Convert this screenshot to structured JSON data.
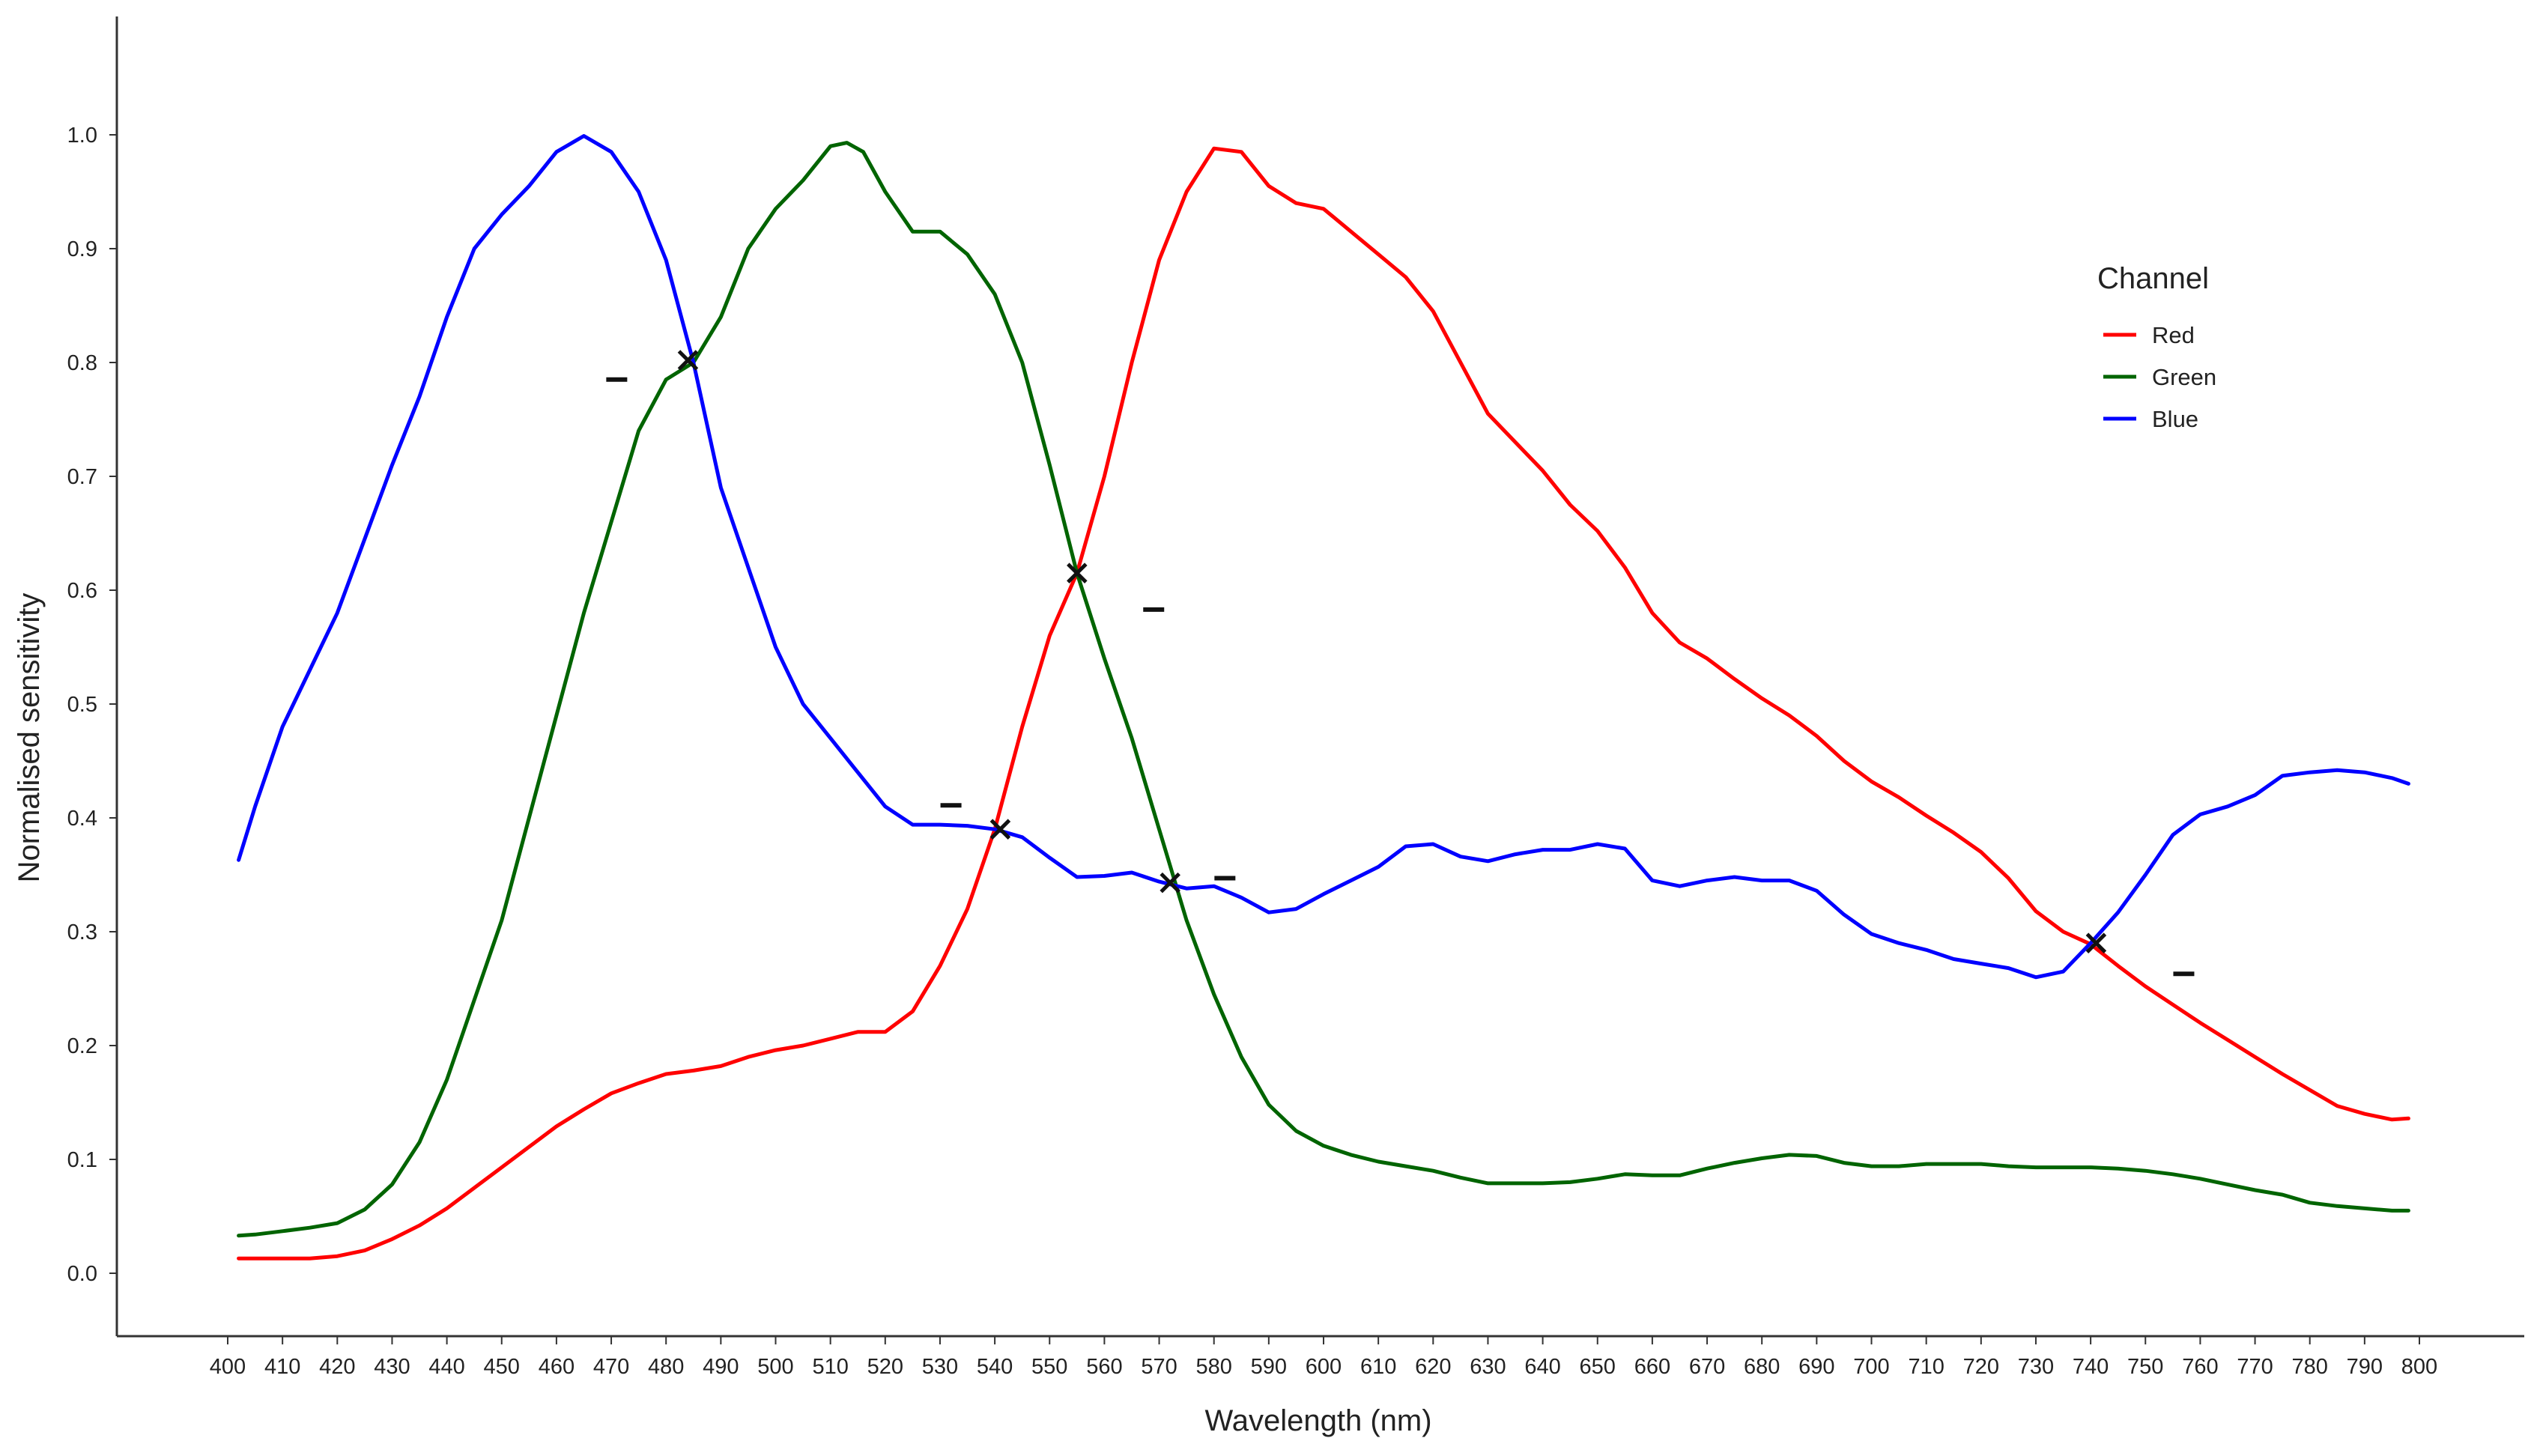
{
  "chart_data": {
    "type": "line",
    "title": "",
    "xlabel": "Wavelength (nm)",
    "ylabel": "Normalised sensitivity",
    "xlim": [
      400,
      800
    ],
    "ylim": [
      0,
      1
    ],
    "x_ticks": [
      400,
      410,
      420,
      430,
      440,
      450,
      460,
      470,
      480,
      490,
      500,
      510,
      520,
      530,
      540,
      550,
      560,
      570,
      580,
      590,
      600,
      610,
      620,
      630,
      640,
      650,
      660,
      670,
      680,
      690,
      700,
      710,
      720,
      730,
      740,
      750,
      760,
      770,
      780,
      790,
      800
    ],
    "y_ticks": [
      0.0,
      0.1,
      0.2,
      0.3,
      0.4,
      0.5,
      0.6,
      0.7,
      0.8,
      0.9,
      1.0
    ],
    "grid": false,
    "legend": {
      "title": "Channel",
      "placement": "right"
    },
    "series": [
      {
        "name": "Red",
        "color": "#ff0000",
        "points": [
          [
            402,
            0.013
          ],
          [
            405,
            0.013
          ],
          [
            410,
            0.013
          ],
          [
            415,
            0.013
          ],
          [
            420,
            0.015
          ],
          [
            425,
            0.02
          ],
          [
            430,
            0.03
          ],
          [
            435,
            0.042
          ],
          [
            440,
            0.057
          ],
          [
            445,
            0.075
          ],
          [
            450,
            0.093
          ],
          [
            455,
            0.111
          ],
          [
            460,
            0.129
          ],
          [
            465,
            0.144
          ],
          [
            470,
            0.158
          ],
          [
            475,
            0.167
          ],
          [
            480,
            0.175
          ],
          [
            485,
            0.178
          ],
          [
            490,
            0.182
          ],
          [
            495,
            0.19
          ],
          [
            500,
            0.196
          ],
          [
            505,
            0.2
          ],
          [
            510,
            0.206
          ],
          [
            515,
            0.212
          ],
          [
            520,
            0.212
          ],
          [
            525,
            0.23
          ],
          [
            530,
            0.27
          ],
          [
            535,
            0.32
          ],
          [
            540,
            0.39
          ],
          [
            545,
            0.48
          ],
          [
            550,
            0.56
          ],
          [
            555,
            0.615
          ],
          [
            560,
            0.7
          ],
          [
            565,
            0.8
          ],
          [
            570,
            0.89
          ],
          [
            575,
            0.95
          ],
          [
            580,
            0.988
          ],
          [
            585,
            0.985
          ],
          [
            590,
            0.955
          ],
          [
            595,
            0.94
          ],
          [
            600,
            0.935
          ],
          [
            605,
            0.915
          ],
          [
            610,
            0.895
          ],
          [
            615,
            0.875
          ],
          [
            620,
            0.845
          ],
          [
            625,
            0.8
          ],
          [
            630,
            0.755
          ],
          [
            635,
            0.73
          ],
          [
            640,
            0.705
          ],
          [
            645,
            0.675
          ],
          [
            650,
            0.652
          ],
          [
            655,
            0.62
          ],
          [
            660,
            0.58
          ],
          [
            665,
            0.554
          ],
          [
            670,
            0.54
          ],
          [
            675,
            0.522
          ],
          [
            680,
            0.505
          ],
          [
            685,
            0.49
          ],
          [
            690,
            0.472
          ],
          [
            695,
            0.45
          ],
          [
            700,
            0.432
          ],
          [
            705,
            0.418
          ],
          [
            710,
            0.402
          ],
          [
            715,
            0.387
          ],
          [
            720,
            0.37
          ],
          [
            725,
            0.347
          ],
          [
            730,
            0.318
          ],
          [
            735,
            0.3
          ],
          [
            740,
            0.289
          ],
          [
            745,
            0.27
          ],
          [
            750,
            0.252
          ],
          [
            755,
            0.236
          ],
          [
            760,
            0.22
          ],
          [
            765,
            0.205
          ],
          [
            770,
            0.19
          ],
          [
            775,
            0.175
          ],
          [
            780,
            0.161
          ],
          [
            785,
            0.147
          ],
          [
            790,
            0.14
          ],
          [
            795,
            0.135
          ],
          [
            798,
            0.136
          ]
        ]
      },
      {
        "name": "Green",
        "color": "#006400",
        "points": [
          [
            402,
            0.033
          ],
          [
            405,
            0.034
          ],
          [
            410,
            0.037
          ],
          [
            415,
            0.04
          ],
          [
            420,
            0.044
          ],
          [
            425,
            0.056
          ],
          [
            430,
            0.078
          ],
          [
            435,
            0.115
          ],
          [
            440,
            0.17
          ],
          [
            445,
            0.24
          ],
          [
            450,
            0.31
          ],
          [
            455,
            0.4
          ],
          [
            460,
            0.49
          ],
          [
            465,
            0.58
          ],
          [
            470,
            0.66
          ],
          [
            475,
            0.74
          ],
          [
            480,
            0.785
          ],
          [
            485,
            0.8
          ],
          [
            490,
            0.84
          ],
          [
            495,
            0.9
          ],
          [
            500,
            0.935
          ],
          [
            505,
            0.96
          ],
          [
            510,
            0.99
          ],
          [
            513,
            0.993
          ],
          [
            516,
            0.985
          ],
          [
            520,
            0.95
          ],
          [
            525,
            0.915
          ],
          [
            530,
            0.915
          ],
          [
            535,
            0.895
          ],
          [
            540,
            0.86
          ],
          [
            545,
            0.8
          ],
          [
            550,
            0.71
          ],
          [
            555,
            0.615
          ],
          [
            560,
            0.54
          ],
          [
            565,
            0.47
          ],
          [
            570,
            0.39
          ],
          [
            575,
            0.31
          ],
          [
            580,
            0.245
          ],
          [
            585,
            0.19
          ],
          [
            590,
            0.148
          ],
          [
            595,
            0.125
          ],
          [
            600,
            0.112
          ],
          [
            605,
            0.104
          ],
          [
            610,
            0.098
          ],
          [
            615,
            0.094
          ],
          [
            620,
            0.09
          ],
          [
            625,
            0.084
          ],
          [
            630,
            0.079
          ],
          [
            635,
            0.079
          ],
          [
            640,
            0.079
          ],
          [
            645,
            0.08
          ],
          [
            650,
            0.083
          ],
          [
            655,
            0.087
          ],
          [
            660,
            0.086
          ],
          [
            665,
            0.086
          ],
          [
            670,
            0.092
          ],
          [
            675,
            0.097
          ],
          [
            680,
            0.101
          ],
          [
            685,
            0.104
          ],
          [
            690,
            0.103
          ],
          [
            695,
            0.097
          ],
          [
            700,
            0.094
          ],
          [
            705,
            0.094
          ],
          [
            710,
            0.096
          ],
          [
            715,
            0.096
          ],
          [
            720,
            0.096
          ],
          [
            725,
            0.094
          ],
          [
            730,
            0.093
          ],
          [
            735,
            0.093
          ],
          [
            740,
            0.093
          ],
          [
            745,
            0.092
          ],
          [
            750,
            0.09
          ],
          [
            755,
            0.087
          ],
          [
            760,
            0.083
          ],
          [
            765,
            0.078
          ],
          [
            770,
            0.073
          ],
          [
            775,
            0.069
          ],
          [
            780,
            0.062
          ],
          [
            785,
            0.059
          ],
          [
            790,
            0.057
          ],
          [
            795,
            0.055
          ],
          [
            798,
            0.055
          ]
        ]
      },
      {
        "name": "Blue",
        "color": "#0000ff",
        "points": [
          [
            402,
            0.363
          ],
          [
            405,
            0.41
          ],
          [
            410,
            0.48
          ],
          [
            415,
            0.53
          ],
          [
            420,
            0.58
          ],
          [
            425,
            0.645
          ],
          [
            430,
            0.71
          ],
          [
            435,
            0.77
          ],
          [
            440,
            0.84
          ],
          [
            445,
            0.9
          ],
          [
            450,
            0.93
          ],
          [
            455,
            0.955
          ],
          [
            460,
            0.985
          ],
          [
            465,
            0.999
          ],
          [
            470,
            0.985
          ],
          [
            475,
            0.95
          ],
          [
            480,
            0.89
          ],
          [
            485,
            0.8
          ],
          [
            490,
            0.69
          ],
          [
            495,
            0.62
          ],
          [
            500,
            0.55
          ],
          [
            505,
            0.5
          ],
          [
            510,
            0.47
          ],
          [
            515,
            0.44
          ],
          [
            520,
            0.41
          ],
          [
            525,
            0.394
          ],
          [
            530,
            0.394
          ],
          [
            535,
            0.393
          ],
          [
            540,
            0.39
          ],
          [
            545,
            0.383
          ],
          [
            550,
            0.365
          ],
          [
            555,
            0.348
          ],
          [
            560,
            0.349
          ],
          [
            565,
            0.352
          ],
          [
            570,
            0.344
          ],
          [
            575,
            0.338
          ],
          [
            580,
            0.34
          ],
          [
            585,
            0.33
          ],
          [
            590,
            0.317
          ],
          [
            595,
            0.32
          ],
          [
            600,
            0.333
          ],
          [
            605,
            0.345
          ],
          [
            610,
            0.357
          ],
          [
            615,
            0.375
          ],
          [
            620,
            0.377
          ],
          [
            625,
            0.366
          ],
          [
            630,
            0.362
          ],
          [
            635,
            0.368
          ],
          [
            640,
            0.372
          ],
          [
            645,
            0.372
          ],
          [
            650,
            0.377
          ],
          [
            655,
            0.373
          ],
          [
            660,
            0.345
          ],
          [
            665,
            0.34
          ],
          [
            670,
            0.345
          ],
          [
            675,
            0.348
          ],
          [
            680,
            0.345
          ],
          [
            685,
            0.345
          ],
          [
            690,
            0.336
          ],
          [
            695,
            0.315
          ],
          [
            700,
            0.298
          ],
          [
            705,
            0.29
          ],
          [
            710,
            0.284
          ],
          [
            715,
            0.276
          ],
          [
            720,
            0.272
          ],
          [
            725,
            0.268
          ],
          [
            730,
            0.26
          ],
          [
            735,
            0.265
          ],
          [
            740,
            0.29
          ],
          [
            745,
            0.317
          ],
          [
            750,
            0.35
          ],
          [
            755,
            0.385
          ],
          [
            760,
            0.403
          ],
          [
            765,
            0.41
          ],
          [
            770,
            0.42
          ],
          [
            775,
            0.437
          ],
          [
            780,
            0.44
          ],
          [
            785,
            0.442
          ],
          [
            790,
            0.44
          ],
          [
            795,
            0.435
          ],
          [
            798,
            0.43
          ]
        ]
      }
    ],
    "intersections": [
      [
        484,
        0.802
      ],
      [
        541,
        0.39
      ],
      [
        555,
        0.615
      ],
      [
        572,
        0.343
      ],
      [
        741,
        0.29
      ]
    ],
    "small_marks": [
      [
        471,
        0.785
      ],
      [
        532,
        0.411
      ],
      [
        569,
        0.583
      ],
      [
        582,
        0.347
      ],
      [
        757,
        0.263
      ]
    ]
  }
}
